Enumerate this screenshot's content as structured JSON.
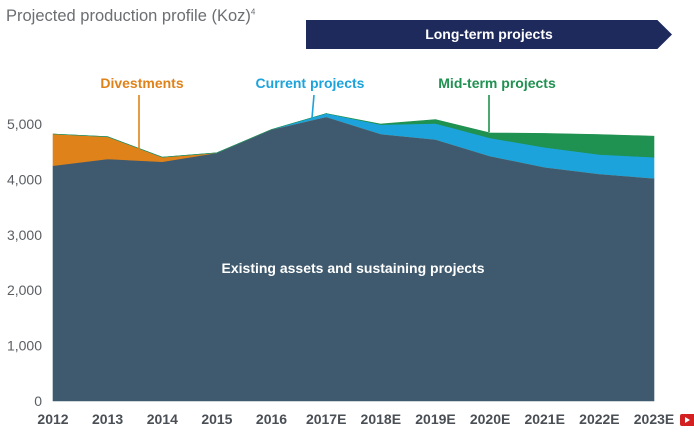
{
  "header": {
    "title": "Projected production profile",
    "unit": "(Koz)",
    "footnote": "4",
    "banner_label": "Long-term projects"
  },
  "chart_data": {
    "type": "area",
    "stacked": true,
    "x": [
      "2012",
      "2013",
      "2014",
      "2015",
      "2016",
      "2017E",
      "2018E",
      "2019E",
      "2020E",
      "2021E",
      "2022E",
      "2023E"
    ],
    "ylim": [
      0,
      5000
    ],
    "yticks": [
      0,
      1000,
      2000,
      3000,
      4000,
      5000
    ],
    "ytick_labels": [
      "0",
      "1,000",
      "2,000",
      "3,000",
      "4,000",
      "5,000"
    ],
    "grid": false,
    "series": [
      {
        "name": "Existing assets and sustaining projects",
        "color": "#3f5a6e",
        "values": [
          4250,
          4370,
          4320,
          4480,
          4900,
          5130,
          4820,
          4720,
          4420,
          4220,
          4100,
          4020
        ]
      },
      {
        "name": "Divestments",
        "color": "#e0821a",
        "values": [
          570,
          400,
          80,
          0,
          0,
          0,
          0,
          0,
          0,
          0,
          0,
          0
        ]
      },
      {
        "name": "Current projects",
        "color": "#1da3dc",
        "values": [
          0,
          0,
          0,
          0,
          0,
          60,
          170,
          290,
          330,
          360,
          350,
          380
        ]
      },
      {
        "name": "Mid-term projects",
        "color": "#1f9150",
        "values": [
          0,
          0,
          0,
          0,
          0,
          0,
          10,
          70,
          90,
          250,
          360,
          380
        ]
      }
    ],
    "annotations": [
      "Divestments",
      "Current projects",
      "Mid-term projects",
      "Existing assets and sustaining projects"
    ]
  }
}
